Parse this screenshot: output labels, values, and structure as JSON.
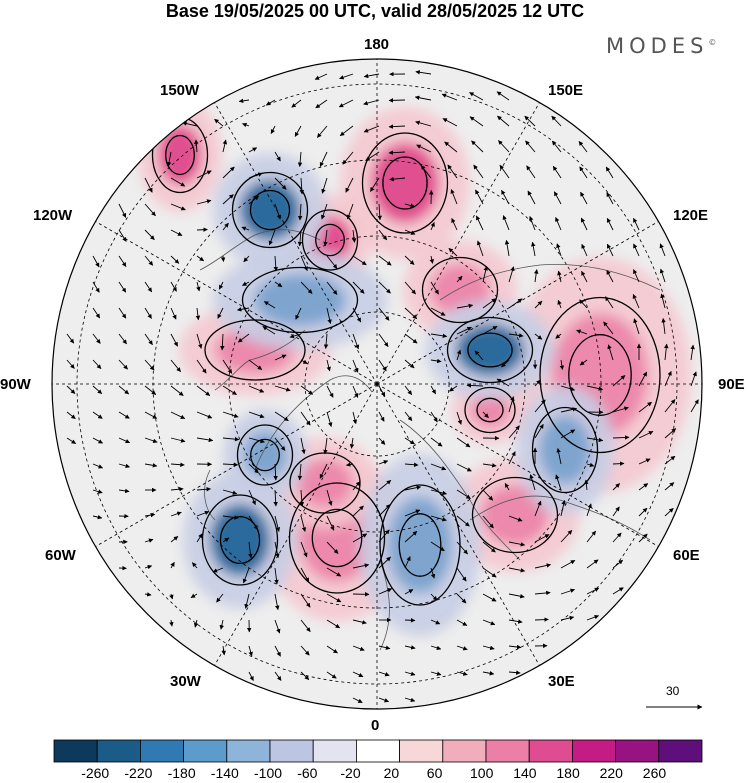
{
  "header": {
    "title": "Base 19/05/2025 00 UTC, valid 28/05/2025 12 UTC",
    "brand": "MODES",
    "brand_mark": "©"
  },
  "map": {
    "projection": "north polar stereographic",
    "longitude_labels": [
      {
        "id": "180",
        "text": "180"
      },
      {
        "id": "150e",
        "text": "150E"
      },
      {
        "id": "120e",
        "text": "120E"
      },
      {
        "id": "90e",
        "text": "90E"
      },
      {
        "id": "60e",
        "text": "60E"
      },
      {
        "id": "30e",
        "text": "30E"
      },
      {
        "id": "0",
        "text": "0"
      },
      {
        "id": "30w",
        "text": "30W"
      },
      {
        "id": "60w",
        "text": "60W"
      },
      {
        "id": "90w",
        "text": "90W"
      },
      {
        "id": "120w",
        "text": "120W"
      },
      {
        "id": "150w",
        "text": "150W"
      }
    ],
    "colors": {
      "negative_strong": "#2b6a9c",
      "negative_weak": "#c7cde4",
      "positive_weak": "#f4c8cf",
      "positive_strong": "#e0508f",
      "neutral": "#ececec",
      "grid": "#000000"
    },
    "anomaly_centers": [
      {
        "sign": "positive",
        "value": 180
      },
      {
        "sign": "positive",
        "value": 140
      },
      {
        "sign": "positive",
        "value": 100
      },
      {
        "sign": "positive",
        "value": 140
      },
      {
        "sign": "positive",
        "value": 100
      },
      {
        "sign": "positive",
        "value": 140
      },
      {
        "sign": "positive",
        "value": 100
      },
      {
        "sign": "positive",
        "value": 100
      },
      {
        "sign": "positive",
        "value": 180
      },
      {
        "sign": "positive",
        "value": 180
      },
      {
        "sign": "negative",
        "value": -220
      },
      {
        "sign": "negative",
        "value": -140
      },
      {
        "sign": "negative",
        "value": -140
      },
      {
        "sign": "negative",
        "value": -180
      },
      {
        "sign": "negative",
        "value": -220
      },
      {
        "sign": "negative",
        "value": -100
      },
      {
        "sign": "negative",
        "value": -100
      }
    ]
  },
  "reference_vector": {
    "value": "30"
  },
  "colorbar": {
    "ticks": [
      "-260",
      "-220",
      "-180",
      "-140",
      "-100",
      "-60",
      "-20",
      "20",
      "60",
      "100",
      "140",
      "180",
      "220",
      "260"
    ],
    "colors": [
      "#0d3a5c",
      "#1a5b88",
      "#2f7ab3",
      "#5c9ccc",
      "#8fb4da",
      "#bcc6e3",
      "#e4e4f0",
      "#ffffff",
      "#f8d7d9",
      "#f2adbd",
      "#ec7fa6",
      "#e04c92",
      "#c41c84",
      "#981282",
      "#5f0f7c"
    ]
  }
}
